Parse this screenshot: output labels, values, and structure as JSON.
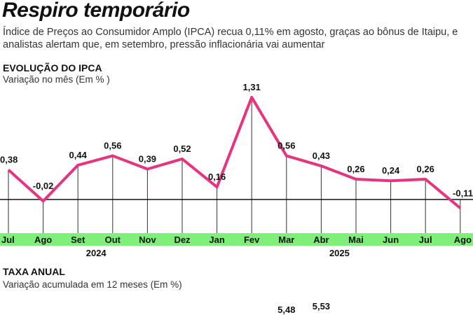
{
  "title": "Respiro temporário",
  "subtitle": "Índice de Preços ao Consumidor Amplo (IPCA) recua 0,11% em agosto, graças ao bônus de Itaipu, e analistas alertam que, em setembro, pressão inflacionária vai aumentar",
  "colors": {
    "line": "#e8337f",
    "band": "#7ef07a",
    "axis": "#111111"
  },
  "chart_data": [
    {
      "type": "line",
      "title": "EVOLUÇÃO DO IPCA",
      "subtitle": "Variação no mês (Em % )",
      "categories": [
        "Jul",
        "Ago",
        "Set",
        "Out",
        "Nov",
        "Dez",
        "Jan",
        "Fev",
        "Mar",
        "Abr",
        "Mai",
        "Jun",
        "Jul",
        "Ago"
      ],
      "year_labels": [
        {
          "label": "2024",
          "month_index": 2
        },
        {
          "label": "2025",
          "month_index": 9
        }
      ],
      "values": [
        0.38,
        -0.02,
        0.44,
        0.56,
        0.39,
        0.52,
        0.16,
        1.31,
        0.56,
        0.43,
        0.26,
        0.24,
        0.26,
        -0.11
      ],
      "value_labels": [
        "0,38",
        "-0,02",
        "0,44",
        "0,56",
        "0,39",
        "0,52",
        "0,16",
        "1,31",
        "0,56",
        "0,43",
        "0,26",
        "0,24",
        "0,26",
        "-0,11"
      ],
      "grid": false
    },
    {
      "type": "line",
      "title": "TAXA ANUAL",
      "subtitle": "Variação acumulada em 12 meses (Em %)",
      "visible_points": [
        {
          "month": "Mar",
          "value": 5.48,
          "label": "5,48"
        },
        {
          "month": "Abr",
          "value": 5.53,
          "label": "5,53"
        }
      ]
    }
  ]
}
